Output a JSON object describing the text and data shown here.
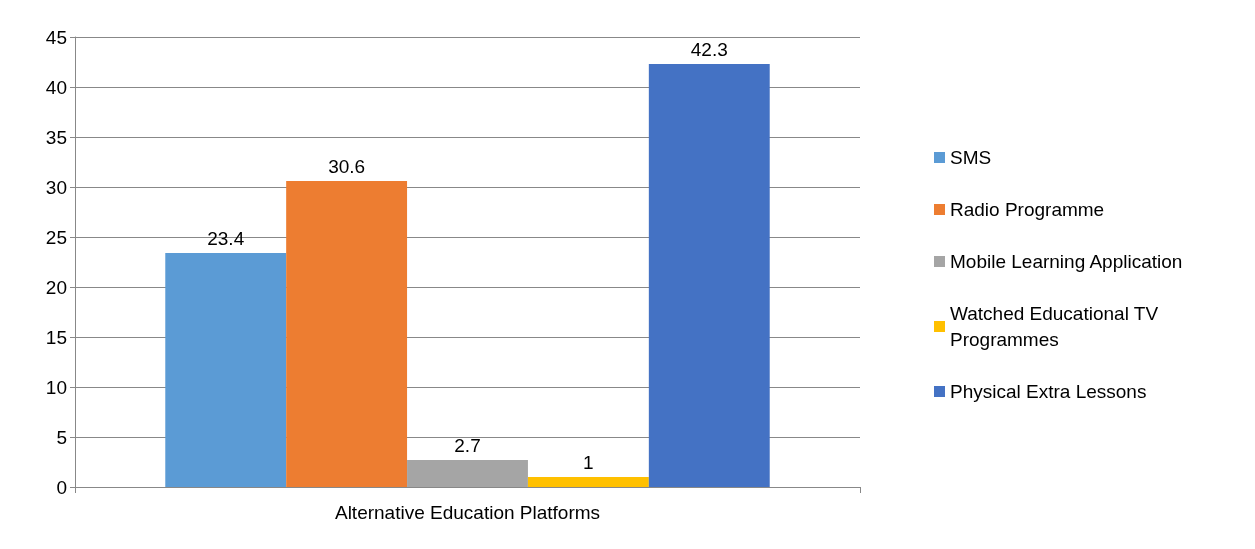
{
  "chart_data": {
    "type": "bar",
    "categories": [
      "Alternative Education Platforms"
    ],
    "series": [
      {
        "name": "SMS",
        "color": "#5b9bd5",
        "values": [
          23.4
        ]
      },
      {
        "name": "Radio Programme",
        "color": "#ed7d31",
        "values": [
          30.6
        ]
      },
      {
        "name": "Mobile Learning Application",
        "color": "#a5a5a5",
        "values": [
          2.7
        ]
      },
      {
        "name": "Watched Educational TV Programmes",
        "color": "#ffc000",
        "values": [
          1
        ]
      },
      {
        "name": "Physical Extra Lessons",
        "color": "#4472c4",
        "values": [
          42.3
        ]
      }
    ],
    "ylim": [
      0,
      45
    ],
    "yticks": [
      0,
      5,
      10,
      15,
      20,
      25,
      30,
      35,
      40,
      45
    ],
    "grid": "y",
    "legend": "right",
    "data_labels": true
  }
}
